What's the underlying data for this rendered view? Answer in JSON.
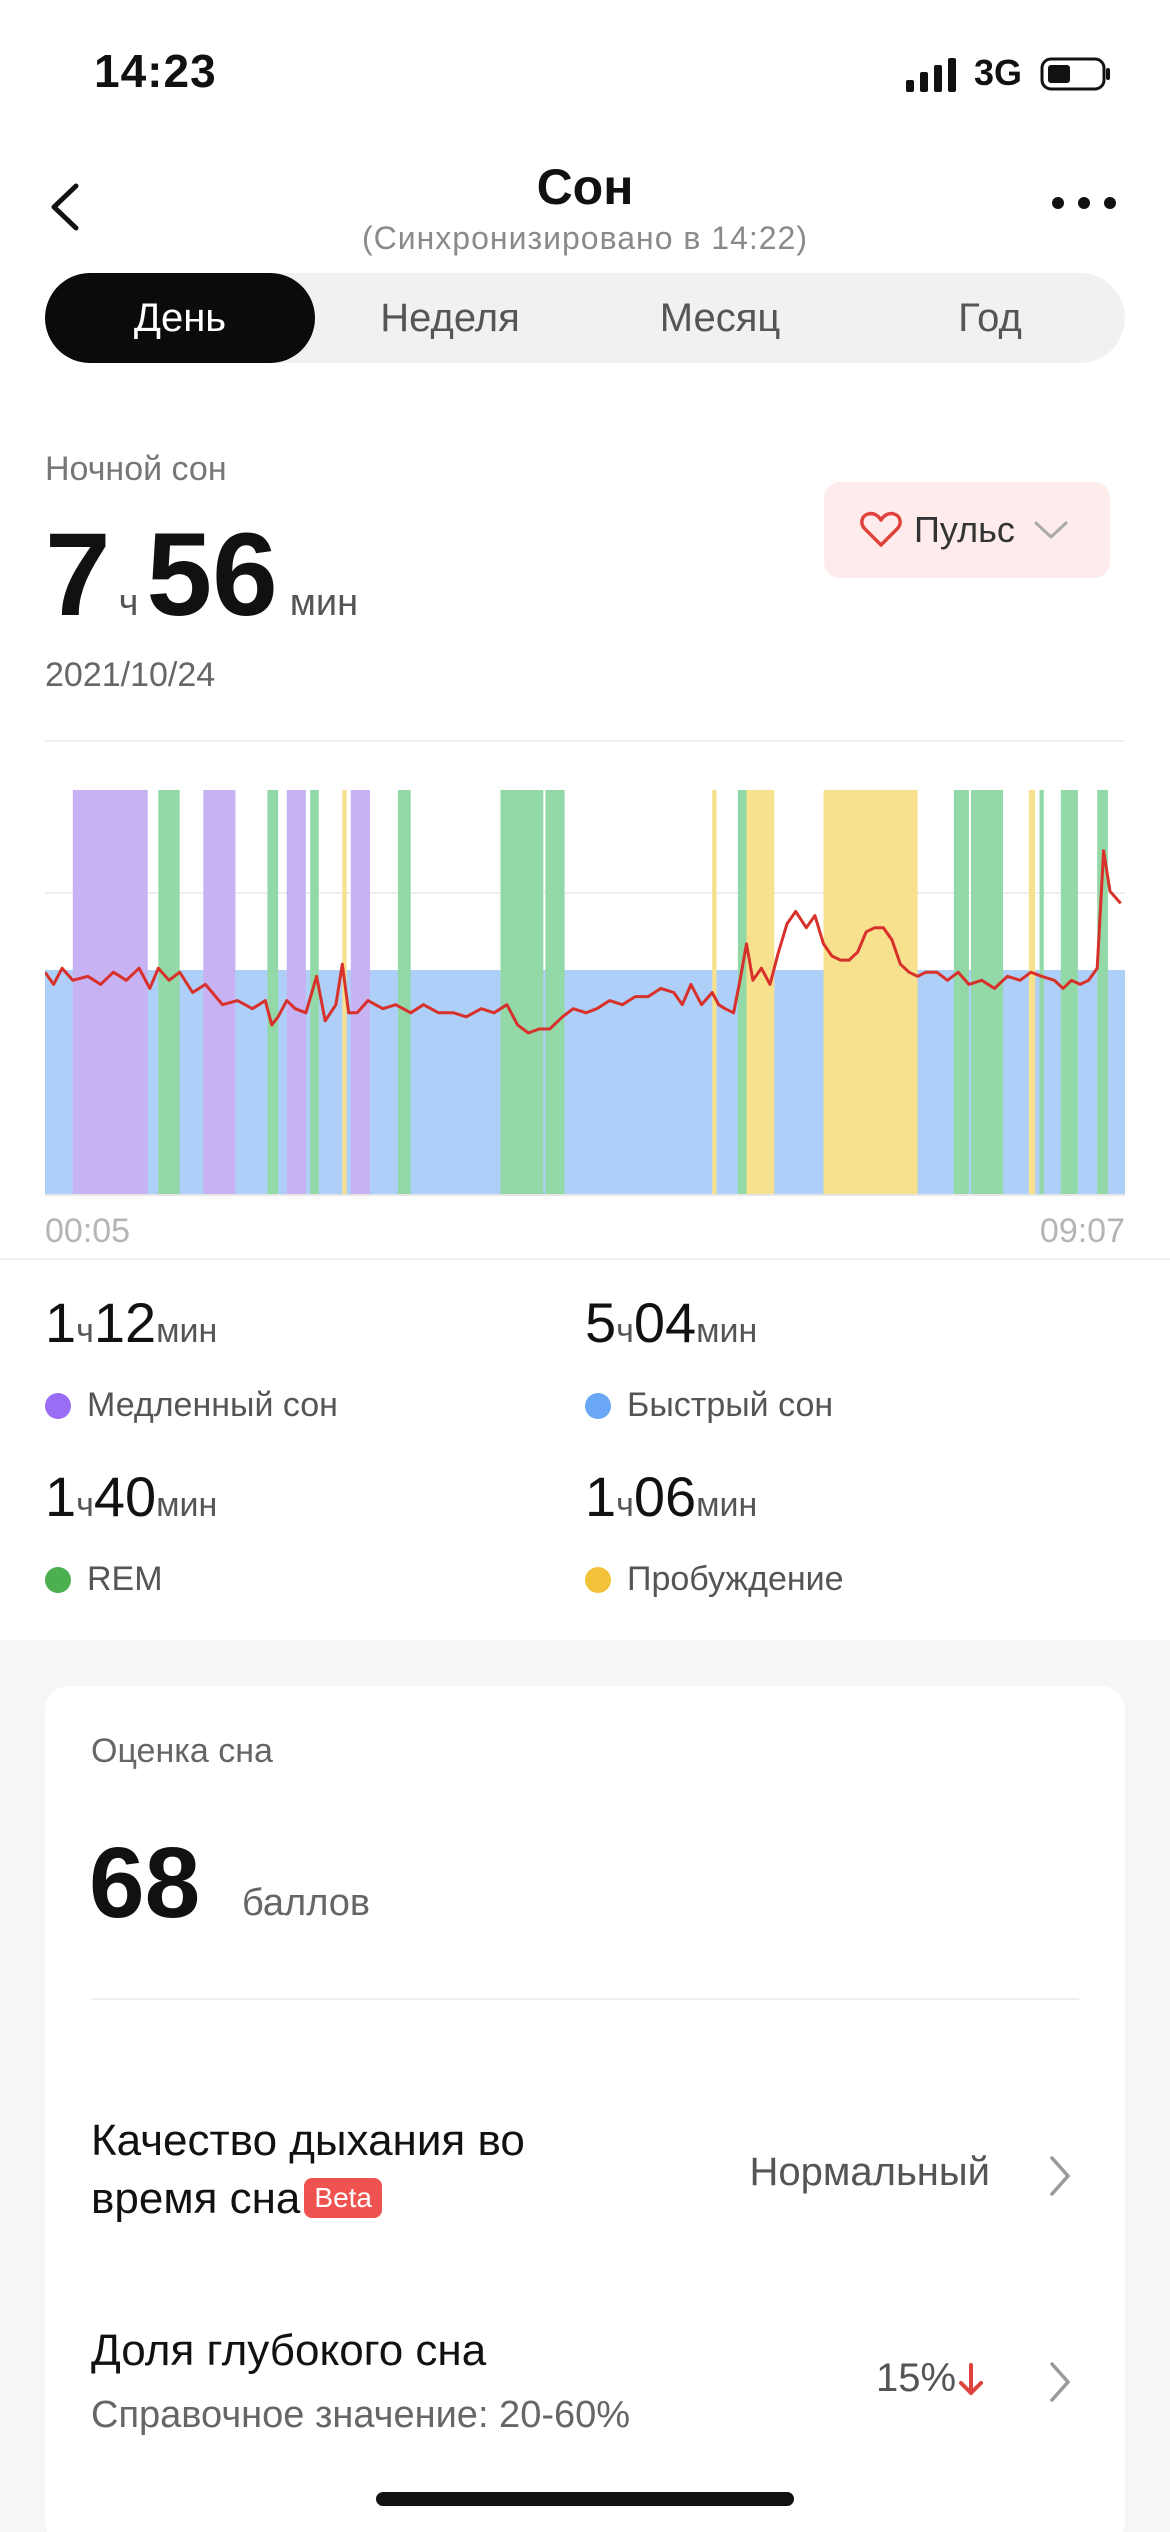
{
  "status": {
    "time": "14:23",
    "network": "3G"
  },
  "header": {
    "title": "Сон",
    "subtitle": "(Синхронизировано в 14:22)"
  },
  "tabs": [
    {
      "label": "День",
      "active": true
    },
    {
      "label": "Неделя",
      "active": false
    },
    {
      "label": "Месяц",
      "active": false
    },
    {
      "label": "Год",
      "active": false
    }
  ],
  "summary": {
    "label": "Ночной сон",
    "hours": "7",
    "hours_unit": "ч",
    "minutes": "56",
    "minutes_unit": "мин",
    "date": "2021/10/24"
  },
  "pulse_button": {
    "label": "Пульс"
  },
  "chart_data": {
    "type": "area",
    "x_start": "00:05",
    "x_end": "09:07",
    "stage_colors": {
      "light": "#aecff8",
      "deep": "#c7b2f3",
      "rem": "#93d9a8",
      "awake": "#f7e08e"
    },
    "pulse_color": "#d8302b",
    "stages_hours": [
      {
        "stage": "deep",
        "start": 0.13,
        "end": 0.48
      },
      {
        "stage": "rem",
        "start": 0.53,
        "end": 0.63
      },
      {
        "stage": "deep",
        "start": 0.74,
        "end": 0.89
      },
      {
        "stage": "rem",
        "start": 1.04,
        "end": 1.09
      },
      {
        "stage": "deep",
        "start": 1.13,
        "end": 1.22
      },
      {
        "stage": "rem",
        "start": 1.24,
        "end": 1.28
      },
      {
        "stage": "awake",
        "start": 1.39,
        "end": 1.41
      },
      {
        "stage": "deep",
        "start": 1.43,
        "end": 1.52
      },
      {
        "stage": "rem",
        "start": 1.65,
        "end": 1.71
      },
      {
        "stage": "rem",
        "start": 2.13,
        "end": 2.33
      },
      {
        "stage": "rem",
        "start": 2.34,
        "end": 2.43
      },
      {
        "stage": "awake",
        "start": 3.12,
        "end": 3.14
      },
      {
        "stage": "rem",
        "start": 3.24,
        "end": 3.28
      },
      {
        "stage": "awake",
        "start": 3.28,
        "end": 3.41
      },
      {
        "stage": "awake",
        "start": 3.64,
        "end": 4.08
      },
      {
        "stage": "rem",
        "start": 4.25,
        "end": 4.32
      },
      {
        "stage": "rem",
        "start": 4.33,
        "end": 4.48
      },
      {
        "stage": "awake",
        "start": 4.6,
        "end": 4.63
      },
      {
        "stage": "rem",
        "start": 4.65,
        "end": 4.67
      },
      {
        "stage": "rem",
        "start": 4.75,
        "end": 4.83
      },
      {
        "stage": "rem",
        "start": 4.92,
        "end": 4.97
      }
    ],
    "pulse": [
      [
        0,
        0.55
      ],
      [
        0.04,
        0.52
      ],
      [
        0.08,
        0.56
      ],
      [
        0.13,
        0.53
      ],
      [
        0.2,
        0.54
      ],
      [
        0.26,
        0.52
      ],
      [
        0.32,
        0.55
      ],
      [
        0.38,
        0.53
      ],
      [
        0.44,
        0.56
      ],
      [
        0.49,
        0.51
      ],
      [
        0.53,
        0.56
      ],
      [
        0.58,
        0.53
      ],
      [
        0.63,
        0.55
      ],
      [
        0.69,
        0.5
      ],
      [
        0.75,
        0.52
      ],
      [
        0.83,
        0.47
      ],
      [
        0.9,
        0.48
      ],
      [
        0.97,
        0.46
      ],
      [
        1.03,
        0.48
      ],
      [
        1.06,
        0.42
      ],
      [
        1.09,
        0.44
      ],
      [
        1.13,
        0.48
      ],
      [
        1.17,
        0.46
      ],
      [
        1.22,
        0.45
      ],
      [
        1.27,
        0.54
      ],
      [
        1.31,
        0.43
      ],
      [
        1.36,
        0.47
      ],
      [
        1.39,
        0.57
      ],
      [
        1.42,
        0.45
      ],
      [
        1.46,
        0.45
      ],
      [
        1.51,
        0.48
      ],
      [
        1.58,
        0.46
      ],
      [
        1.64,
        0.47
      ],
      [
        1.71,
        0.45
      ],
      [
        1.77,
        0.47
      ],
      [
        1.84,
        0.45
      ],
      [
        1.91,
        0.45
      ],
      [
        1.97,
        0.44
      ],
      [
        2.04,
        0.46
      ],
      [
        2.1,
        0.45
      ],
      [
        2.16,
        0.47
      ],
      [
        2.21,
        0.42
      ],
      [
        2.26,
        0.4
      ],
      [
        2.31,
        0.41
      ],
      [
        2.36,
        0.41
      ],
      [
        2.42,
        0.44
      ],
      [
        2.47,
        0.46
      ],
      [
        2.53,
        0.45
      ],
      [
        2.58,
        0.46
      ],
      [
        2.64,
        0.48
      ],
      [
        2.7,
        0.47
      ],
      [
        2.76,
        0.49
      ],
      [
        2.82,
        0.49
      ],
      [
        2.88,
        0.51
      ],
      [
        2.94,
        0.5
      ],
      [
        2.98,
        0.47
      ],
      [
        3.02,
        0.52
      ],
      [
        3.07,
        0.47
      ],
      [
        3.12,
        0.5
      ],
      [
        3.15,
        0.47
      ],
      [
        3.18,
        0.46
      ],
      [
        3.22,
        0.45
      ],
      [
        3.25,
        0.53
      ],
      [
        3.28,
        0.62
      ],
      [
        3.31,
        0.53
      ],
      [
        3.35,
        0.56
      ],
      [
        3.39,
        0.52
      ],
      [
        3.43,
        0.6
      ],
      [
        3.47,
        0.67
      ],
      [
        3.51,
        0.7
      ],
      [
        3.56,
        0.66
      ],
      [
        3.6,
        0.69
      ],
      [
        3.64,
        0.62
      ],
      [
        3.68,
        0.59
      ],
      [
        3.72,
        0.58
      ],
      [
        3.76,
        0.58
      ],
      [
        3.8,
        0.6
      ],
      [
        3.84,
        0.65
      ],
      [
        3.88,
        0.66
      ],
      [
        3.92,
        0.66
      ],
      [
        3.96,
        0.63
      ],
      [
        4,
        0.57
      ],
      [
        4.04,
        0.55
      ],
      [
        4.08,
        0.54
      ],
      [
        4.12,
        0.55
      ],
      [
        4.17,
        0.55
      ],
      [
        4.22,
        0.53
      ],
      [
        4.27,
        0.55
      ],
      [
        4.32,
        0.52
      ],
      [
        4.38,
        0.53
      ],
      [
        4.44,
        0.51
      ],
      [
        4.5,
        0.54
      ],
      [
        4.56,
        0.53
      ],
      [
        4.61,
        0.55
      ],
      [
        4.66,
        0.54
      ],
      [
        4.72,
        0.53
      ],
      [
        4.76,
        0.51
      ],
      [
        4.8,
        0.53
      ],
      [
        4.84,
        0.52
      ],
      [
        4.88,
        0.53
      ],
      [
        4.92,
        0.56
      ],
      [
        4.95,
        0.85
      ],
      [
        4.98,
        0.75
      ],
      [
        5.03,
        0.72
      ]
    ]
  },
  "stats": [
    {
      "h": "1",
      "h_unit": "ч",
      "m": "12",
      "m_unit": "мин",
      "label": "Медленный сон",
      "color": "#9b6cf4"
    },
    {
      "h": "5",
      "h_unit": "ч",
      "m": "04",
      "m_unit": "мин",
      "label": "Быстрый сон",
      "color": "#6aa8f7"
    },
    {
      "h": "1",
      "h_unit": "ч",
      "m": "40",
      "m_unit": "мин",
      "label": "REM",
      "color": "#4caf50"
    },
    {
      "h": "1",
      "h_unit": "ч",
      "m": "06",
      "m_unit": "мин",
      "label": "Пробуждение",
      "color": "#f2c23a"
    }
  ],
  "score": {
    "label": "Оценка сна",
    "value": "68",
    "unit": "баллов"
  },
  "rows": [
    {
      "title_line1": "Качество дыхания во",
      "title_line2": "время сна",
      "badge": "Beta",
      "value": "Нормальный"
    },
    {
      "title": "Доля глубокого сна",
      "sub": "Справочное значение: 20-60%",
      "value": "15%"
    }
  ]
}
